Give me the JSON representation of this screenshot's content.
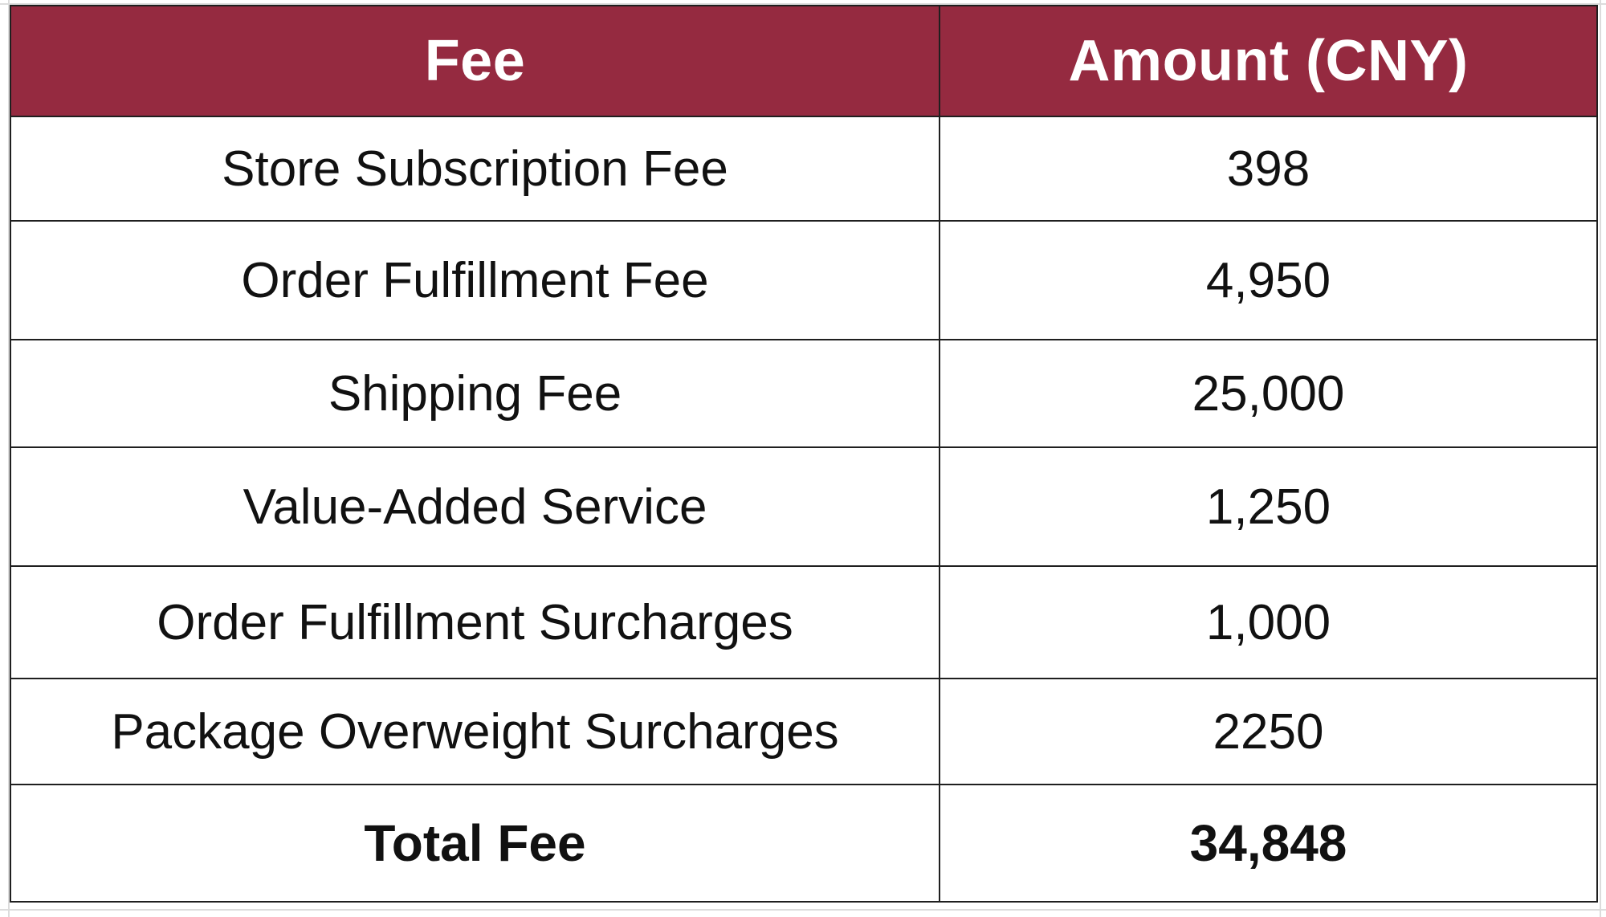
{
  "table": {
    "headers": {
      "fee": "Fee",
      "amount": "Amount (CNY)"
    },
    "rows": [
      {
        "fee": "Store Subscription Fee",
        "amount": "398"
      },
      {
        "fee": "Order Fulfillment Fee",
        "amount": "4,950"
      },
      {
        "fee": "Shipping Fee",
        "amount": "25,000"
      },
      {
        "fee": "Value-Added Service",
        "amount": "1,250"
      },
      {
        "fee": "Order Fulfillment Surcharges",
        "amount": "1,000"
      },
      {
        "fee": "Package Overweight Surcharges",
        "amount": "2250"
      }
    ],
    "total": {
      "fee": "Total Fee",
      "amount": "34,848"
    }
  },
  "colors": {
    "header_background": "#952a40",
    "header_text": "#ffffff",
    "border": "#1f1f1f",
    "gridline": "#dcdcdc"
  }
}
